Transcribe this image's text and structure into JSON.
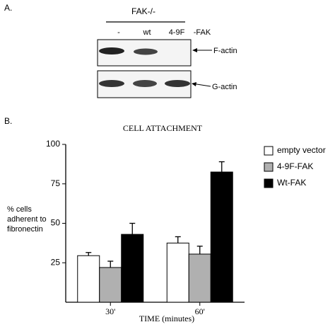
{
  "panel_a": {
    "label": "A.",
    "group_label": "FAK-/-",
    "lanes": [
      "-",
      "wt",
      "4-9F",
      "-FAK"
    ],
    "bands": [
      "F-actin",
      "G-actin"
    ]
  },
  "chart_data": {
    "type": "bar",
    "panel_label": "B.",
    "title": "CELL ATTACHMENT",
    "y_label": [
      "% cells",
      "adherent to",
      "fibronectin"
    ],
    "x_label": "TIME (minutes)",
    "categories": [
      "30'",
      "60'"
    ],
    "series": [
      {
        "name": "empty vector",
        "color": "#ffffff",
        "values": [
          29.5,
          37.5
        ],
        "errors": [
          2,
          4
        ]
      },
      {
        "name": "4-9F-FAK",
        "color": "#b0b0b0",
        "values": [
          22,
          30.5
        ],
        "errors": [
          4,
          5
        ]
      },
      {
        "name": "Wt-FAK",
        "color": "#000000",
        "values": [
          43,
          82.5
        ],
        "errors": [
          7,
          6.5
        ]
      }
    ],
    "ylim": [
      0,
      100
    ],
    "yticks": [
      25,
      50,
      75,
      100
    ]
  }
}
